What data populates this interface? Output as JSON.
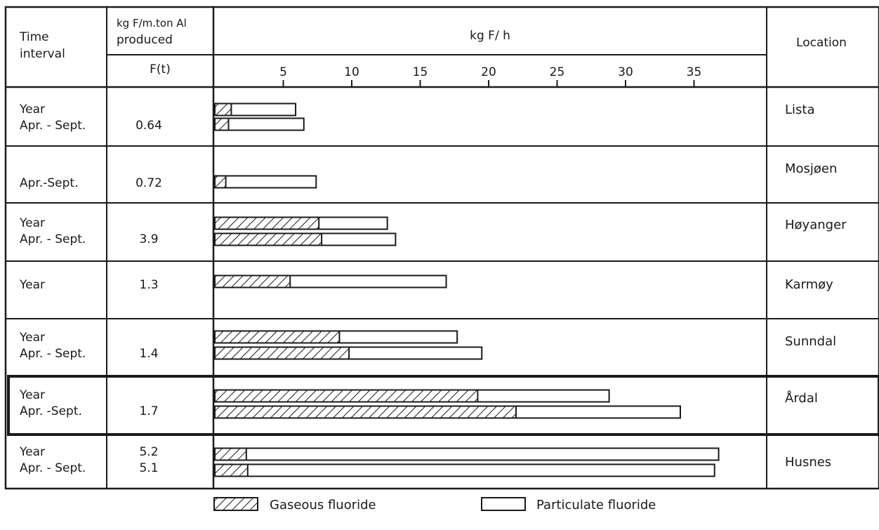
{
  "headers": {
    "time_interval_l1": "Time",
    "time_interval_l2": "interval",
    "ft_l1": "kg F/m.ton Al",
    "ft_l2": "produced",
    "ft_sub": "F(t)",
    "kgfh": "kg F/ h",
    "location": "Location"
  },
  "legend": {
    "gaseous": "Gaseous fluoride",
    "particulate": "Particulate fluoride"
  },
  "chart_data": {
    "type": "bar",
    "orientation": "horizontal",
    "stacked": true,
    "xlabel": "kg F/ h",
    "xlim": [
      0,
      38
    ],
    "xticks": [
      5,
      10,
      15,
      20,
      25,
      30,
      35
    ],
    "series_names": [
      "Gaseous fluoride",
      "Particulate fluoride"
    ],
    "groups": [
      {
        "location": "Lista",
        "intervals": [
          "Year",
          "Apr. - Sept."
        ],
        "ft": [
          "0.64"
        ],
        "bars": [
          {
            "gaseous": 1.2,
            "total": 5.9
          },
          {
            "gaseous": 1.0,
            "total": 6.5
          }
        ]
      },
      {
        "location": "Mosjøen",
        "intervals": [
          "Apr.-Sept."
        ],
        "ft": [
          "0.72"
        ],
        "bars": [
          {
            "gaseous": 0.8,
            "total": 7.4
          }
        ]
      },
      {
        "location": "Høyanger",
        "intervals": [
          "Year",
          "Apr. - Sept."
        ],
        "ft": [
          "3.9"
        ],
        "bars": [
          {
            "gaseous": 7.6,
            "total": 12.6
          },
          {
            "gaseous": 7.8,
            "total": 13.2
          }
        ]
      },
      {
        "location": "Karmøy",
        "intervals": [
          "Year"
        ],
        "ft": [
          "1.3"
        ],
        "bars": [
          {
            "gaseous": 5.5,
            "total": 16.9
          }
        ]
      },
      {
        "location": "Sunndal",
        "intervals": [
          "Year",
          "Apr. - Sept."
        ],
        "ft": [
          "1.4"
        ],
        "bars": [
          {
            "gaseous": 9.1,
            "total": 17.7
          },
          {
            "gaseous": 9.8,
            "total": 19.5
          }
        ]
      },
      {
        "location": "Årdal",
        "intervals": [
          "Year",
          "Apr. -Sept."
        ],
        "ft": [
          "1.7"
        ],
        "bars": [
          {
            "gaseous": 19.2,
            "total": 28.8
          },
          {
            "gaseous": 22.0,
            "total": 34.0
          }
        ]
      },
      {
        "location": "Husnes",
        "intervals": [
          "Year",
          "Apr. - Sept."
        ],
        "ft": [
          "5.2",
          "5.1"
        ],
        "bars": [
          {
            "gaseous": 2.3,
            "total": 36.8
          },
          {
            "gaseous": 2.4,
            "total": 36.5
          }
        ]
      }
    ]
  }
}
